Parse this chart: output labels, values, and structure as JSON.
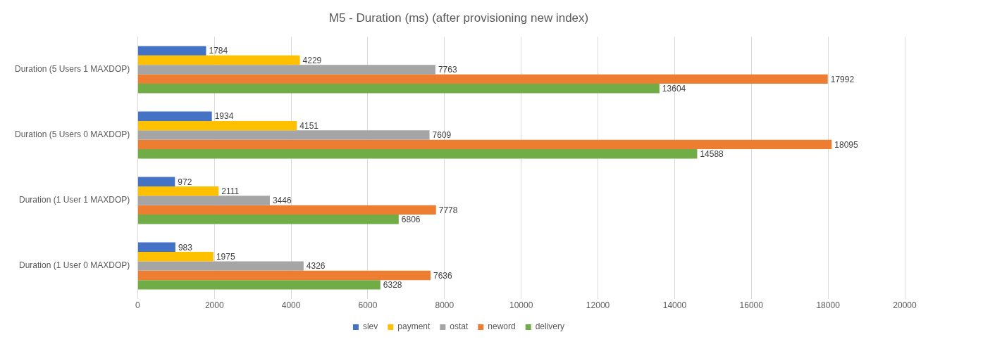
{
  "chart_data": {
    "type": "bar",
    "orientation": "horizontal",
    "title": "M5 - Duration (ms) (after provisioning new index)",
    "categories": [
      "Duration (5 Users 1 MAXDOP)",
      "Duration (5 Users 0 MAXDOP)",
      "Duration (1 User 1 MAXDOP)",
      "Duration (1 User 0 MAXDOP)"
    ],
    "series": [
      {
        "name": "slev",
        "color": "#4472c4",
        "values": [
          1784,
          1934,
          972,
          983
        ]
      },
      {
        "name": "payment",
        "color": "#ffc000",
        "values": [
          4229,
          4151,
          2111,
          1975
        ]
      },
      {
        "name": "ostat",
        "color": "#a5a5a5",
        "values": [
          7763,
          7609,
          3446,
          4326
        ]
      },
      {
        "name": "neword",
        "color": "#ed7d31",
        "values": [
          17992,
          18095,
          7778,
          7636
        ]
      },
      {
        "name": "delivery",
        "color": "#70ad47",
        "values": [
          13604,
          14588,
          6806,
          6328
        ]
      }
    ],
    "xlim": [
      0,
      20000
    ],
    "xticks": [
      0,
      2000,
      4000,
      6000,
      8000,
      10000,
      12000,
      14000,
      16000,
      18000,
      20000
    ],
    "grid": "x",
    "legend": "bottom",
    "data_labels": true
  }
}
